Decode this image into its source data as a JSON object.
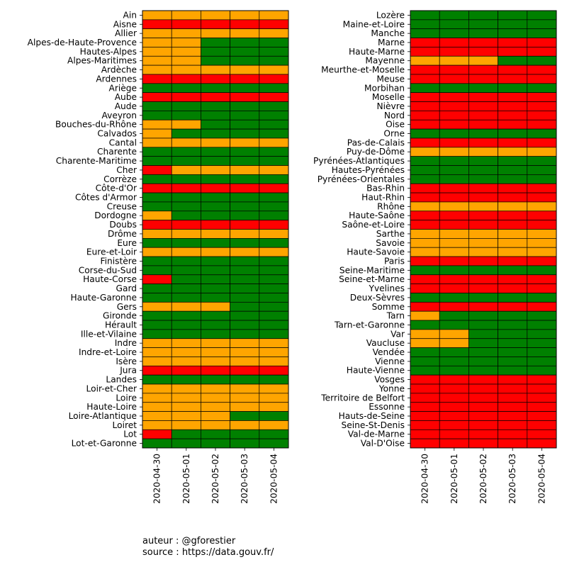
{
  "colors": {
    "0": "#ff0000",
    "1": "#ffa500",
    "2": "#008000"
  },
  "legend_codes": {
    "0": "red",
    "1": "orange",
    "2": "green"
  },
  "credits": {
    "author": "auteur : @gforestier",
    "source": "source : https://data.gouv.fr/"
  },
  "chart_data": [
    {
      "type": "heatmap",
      "dates": [
        "2020-04-30",
        "2020-05-01",
        "2020-05-02",
        "2020-05-03",
        "2020-05-04"
      ],
      "rows": [
        {
          "name": "Ain",
          "values": [
            1,
            1,
            1,
            1,
            1
          ]
        },
        {
          "name": "Aisne",
          "values": [
            0,
            0,
            0,
            0,
            0
          ]
        },
        {
          "name": "Allier",
          "values": [
            1,
            1,
            1,
            1,
            1
          ]
        },
        {
          "name": "Alpes-de-Haute-Provence",
          "values": [
            1,
            1,
            2,
            2,
            2
          ]
        },
        {
          "name": "Hautes-Alpes",
          "values": [
            1,
            1,
            2,
            2,
            2
          ]
        },
        {
          "name": "Alpes-Maritimes",
          "values": [
            1,
            1,
            2,
            2,
            2
          ]
        },
        {
          "name": "Ardèche",
          "values": [
            1,
            1,
            1,
            1,
            1
          ]
        },
        {
          "name": "Ardennes",
          "values": [
            0,
            0,
            0,
            0,
            0
          ]
        },
        {
          "name": "Ariège",
          "values": [
            2,
            2,
            2,
            2,
            2
          ]
        },
        {
          "name": "Aube",
          "values": [
            0,
            0,
            0,
            0,
            0
          ]
        },
        {
          "name": "Aude",
          "values": [
            2,
            2,
            2,
            2,
            2
          ]
        },
        {
          "name": "Aveyron",
          "values": [
            2,
            2,
            2,
            2,
            2
          ]
        },
        {
          "name": "Bouches-du-Rhône",
          "values": [
            1,
            1,
            2,
            2,
            2
          ]
        },
        {
          "name": "Calvados",
          "values": [
            1,
            2,
            2,
            2,
            2
          ]
        },
        {
          "name": "Cantal",
          "values": [
            1,
            1,
            1,
            1,
            1
          ]
        },
        {
          "name": "Charente",
          "values": [
            2,
            2,
            2,
            2,
            2
          ]
        },
        {
          "name": "Charente-Maritime",
          "values": [
            2,
            2,
            2,
            2,
            2
          ]
        },
        {
          "name": "Cher",
          "values": [
            0,
            1,
            1,
            1,
            1
          ]
        },
        {
          "name": "Corrèze",
          "values": [
            2,
            2,
            2,
            2,
            2
          ]
        },
        {
          "name": "Côte-d'Or",
          "values": [
            0,
            0,
            0,
            0,
            0
          ]
        },
        {
          "name": "Côtes d'Armor",
          "values": [
            2,
            2,
            2,
            2,
            2
          ]
        },
        {
          "name": "Creuse",
          "values": [
            2,
            2,
            2,
            2,
            2
          ]
        },
        {
          "name": "Dordogne",
          "values": [
            1,
            2,
            2,
            2,
            2
          ]
        },
        {
          "name": "Doubs",
          "values": [
            0,
            0,
            0,
            0,
            0
          ]
        },
        {
          "name": "Drôme",
          "values": [
            1,
            1,
            1,
            1,
            1
          ]
        },
        {
          "name": "Eure",
          "values": [
            2,
            2,
            2,
            2,
            2
          ]
        },
        {
          "name": "Eure-et-Loir",
          "values": [
            1,
            1,
            1,
            1,
            1
          ]
        },
        {
          "name": "Finistère",
          "values": [
            2,
            2,
            2,
            2,
            2
          ]
        },
        {
          "name": "Corse-du-Sud",
          "values": [
            2,
            2,
            2,
            2,
            2
          ]
        },
        {
          "name": "Haute-Corse",
          "values": [
            0,
            2,
            2,
            2,
            2
          ]
        },
        {
          "name": "Gard",
          "values": [
            2,
            2,
            2,
            2,
            2
          ]
        },
        {
          "name": "Haute-Garonne",
          "values": [
            2,
            2,
            2,
            2,
            2
          ]
        },
        {
          "name": "Gers",
          "values": [
            1,
            1,
            1,
            2,
            2
          ]
        },
        {
          "name": "Gironde",
          "values": [
            2,
            2,
            2,
            2,
            2
          ]
        },
        {
          "name": "Hérault",
          "values": [
            2,
            2,
            2,
            2,
            2
          ]
        },
        {
          "name": "Ille-et-Vilaine",
          "values": [
            2,
            2,
            2,
            2,
            2
          ]
        },
        {
          "name": "Indre",
          "values": [
            1,
            1,
            1,
            1,
            1
          ]
        },
        {
          "name": "Indre-et-Loire",
          "values": [
            1,
            1,
            1,
            1,
            1
          ]
        },
        {
          "name": "Isère",
          "values": [
            1,
            1,
            1,
            1,
            1
          ]
        },
        {
          "name": "Jura",
          "values": [
            0,
            0,
            0,
            0,
            0
          ]
        },
        {
          "name": "Landes",
          "values": [
            2,
            2,
            2,
            2,
            2
          ]
        },
        {
          "name": "Loir-et-Cher",
          "values": [
            1,
            1,
            1,
            1,
            1
          ]
        },
        {
          "name": "Loire",
          "values": [
            1,
            1,
            1,
            1,
            1
          ]
        },
        {
          "name": "Haute-Loire",
          "values": [
            1,
            1,
            1,
            1,
            1
          ]
        },
        {
          "name": "Loire-Atlantique",
          "values": [
            1,
            1,
            1,
            2,
            2
          ]
        },
        {
          "name": "Loiret",
          "values": [
            1,
            1,
            1,
            1,
            1
          ]
        },
        {
          "name": "Lot",
          "values": [
            0,
            2,
            2,
            2,
            2
          ]
        },
        {
          "name": "Lot-et-Garonne",
          "values": [
            2,
            2,
            2,
            2,
            2
          ]
        }
      ]
    },
    {
      "type": "heatmap",
      "dates": [
        "2020-04-30",
        "2020-05-01",
        "2020-05-02",
        "2020-05-03",
        "2020-05-04"
      ],
      "rows": [
        {
          "name": "Lozère",
          "values": [
            2,
            2,
            2,
            2,
            2
          ]
        },
        {
          "name": "Maine-et-Loire",
          "values": [
            2,
            2,
            2,
            2,
            2
          ]
        },
        {
          "name": "Manche",
          "values": [
            2,
            2,
            2,
            2,
            2
          ]
        },
        {
          "name": "Marne",
          "values": [
            0,
            0,
            0,
            0,
            0
          ]
        },
        {
          "name": "Haute-Marne",
          "values": [
            0,
            0,
            0,
            0,
            0
          ]
        },
        {
          "name": "Mayenne",
          "values": [
            1,
            1,
            1,
            2,
            2
          ]
        },
        {
          "name": "Meurthe-et-Moselle",
          "values": [
            0,
            0,
            0,
            0,
            0
          ]
        },
        {
          "name": "Meuse",
          "values": [
            0,
            0,
            0,
            0,
            0
          ]
        },
        {
          "name": "Morbihan",
          "values": [
            2,
            2,
            2,
            2,
            2
          ]
        },
        {
          "name": "Moselle",
          "values": [
            0,
            0,
            0,
            0,
            0
          ]
        },
        {
          "name": "Nièvre",
          "values": [
            0,
            0,
            0,
            0,
            0
          ]
        },
        {
          "name": "Nord",
          "values": [
            0,
            0,
            0,
            0,
            0
          ]
        },
        {
          "name": "Oise",
          "values": [
            0,
            0,
            0,
            0,
            0
          ]
        },
        {
          "name": "Orne",
          "values": [
            2,
            2,
            2,
            2,
            2
          ]
        },
        {
          "name": "Pas-de-Calais",
          "values": [
            0,
            0,
            0,
            0,
            0
          ]
        },
        {
          "name": "Puy-de-Dôme",
          "values": [
            1,
            1,
            1,
            1,
            1
          ]
        },
        {
          "name": "Pyrénées-Atlantiques",
          "values": [
            2,
            2,
            2,
            2,
            2
          ]
        },
        {
          "name": "Hautes-Pyrénées",
          "values": [
            2,
            2,
            2,
            2,
            2
          ]
        },
        {
          "name": "Pyrénées-Orientales",
          "values": [
            2,
            2,
            2,
            2,
            2
          ]
        },
        {
          "name": "Bas-Rhin",
          "values": [
            0,
            0,
            0,
            0,
            0
          ]
        },
        {
          "name": "Haut-Rhin",
          "values": [
            0,
            0,
            0,
            0,
            0
          ]
        },
        {
          "name": "Rhône",
          "values": [
            1,
            1,
            1,
            1,
            1
          ]
        },
        {
          "name": "Haute-Saône",
          "values": [
            0,
            0,
            0,
            0,
            0
          ]
        },
        {
          "name": "Saône-et-Loire",
          "values": [
            0,
            0,
            0,
            0,
            0
          ]
        },
        {
          "name": "Sarthe",
          "values": [
            1,
            1,
            1,
            1,
            1
          ]
        },
        {
          "name": "Savoie",
          "values": [
            1,
            1,
            1,
            1,
            1
          ]
        },
        {
          "name": "Haute-Savoie",
          "values": [
            1,
            1,
            1,
            1,
            1
          ]
        },
        {
          "name": "Paris",
          "values": [
            0,
            0,
            0,
            0,
            0
          ]
        },
        {
          "name": "Seine-Maritime",
          "values": [
            2,
            2,
            2,
            2,
            2
          ]
        },
        {
          "name": "Seine-et-Marne",
          "values": [
            0,
            0,
            0,
            0,
            0
          ]
        },
        {
          "name": "Yvelines",
          "values": [
            0,
            0,
            0,
            0,
            0
          ]
        },
        {
          "name": "Deux-Sèvres",
          "values": [
            2,
            2,
            2,
            2,
            2
          ]
        },
        {
          "name": "Somme",
          "values": [
            0,
            0,
            0,
            0,
            0
          ]
        },
        {
          "name": "Tarn",
          "values": [
            1,
            2,
            2,
            2,
            2
          ]
        },
        {
          "name": "Tarn-et-Garonne",
          "values": [
            2,
            2,
            2,
            2,
            2
          ]
        },
        {
          "name": "Var",
          "values": [
            1,
            1,
            2,
            2,
            2
          ]
        },
        {
          "name": "Vaucluse",
          "values": [
            1,
            1,
            2,
            2,
            2
          ]
        },
        {
          "name": "Vendée",
          "values": [
            2,
            2,
            2,
            2,
            2
          ]
        },
        {
          "name": "Vienne",
          "values": [
            2,
            2,
            2,
            2,
            2
          ]
        },
        {
          "name": "Haute-Vienne",
          "values": [
            2,
            2,
            2,
            2,
            2
          ]
        },
        {
          "name": "Vosges",
          "values": [
            0,
            0,
            0,
            0,
            0
          ]
        },
        {
          "name": "Yonne",
          "values": [
            0,
            0,
            0,
            0,
            0
          ]
        },
        {
          "name": "Territoire de Belfort",
          "values": [
            0,
            0,
            0,
            0,
            0
          ]
        },
        {
          "name": "Essonne",
          "values": [
            0,
            0,
            0,
            0,
            0
          ]
        },
        {
          "name": "Hauts-de-Seine",
          "values": [
            0,
            0,
            0,
            0,
            0
          ]
        },
        {
          "name": "Seine-St-Denis",
          "values": [
            0,
            0,
            0,
            0,
            0
          ]
        },
        {
          "name": "Val-de-Marne",
          "values": [
            0,
            0,
            0,
            0,
            0
          ]
        },
        {
          "name": "Val-D'Oise",
          "values": [
            0,
            0,
            0,
            0,
            0
          ]
        }
      ]
    }
  ]
}
